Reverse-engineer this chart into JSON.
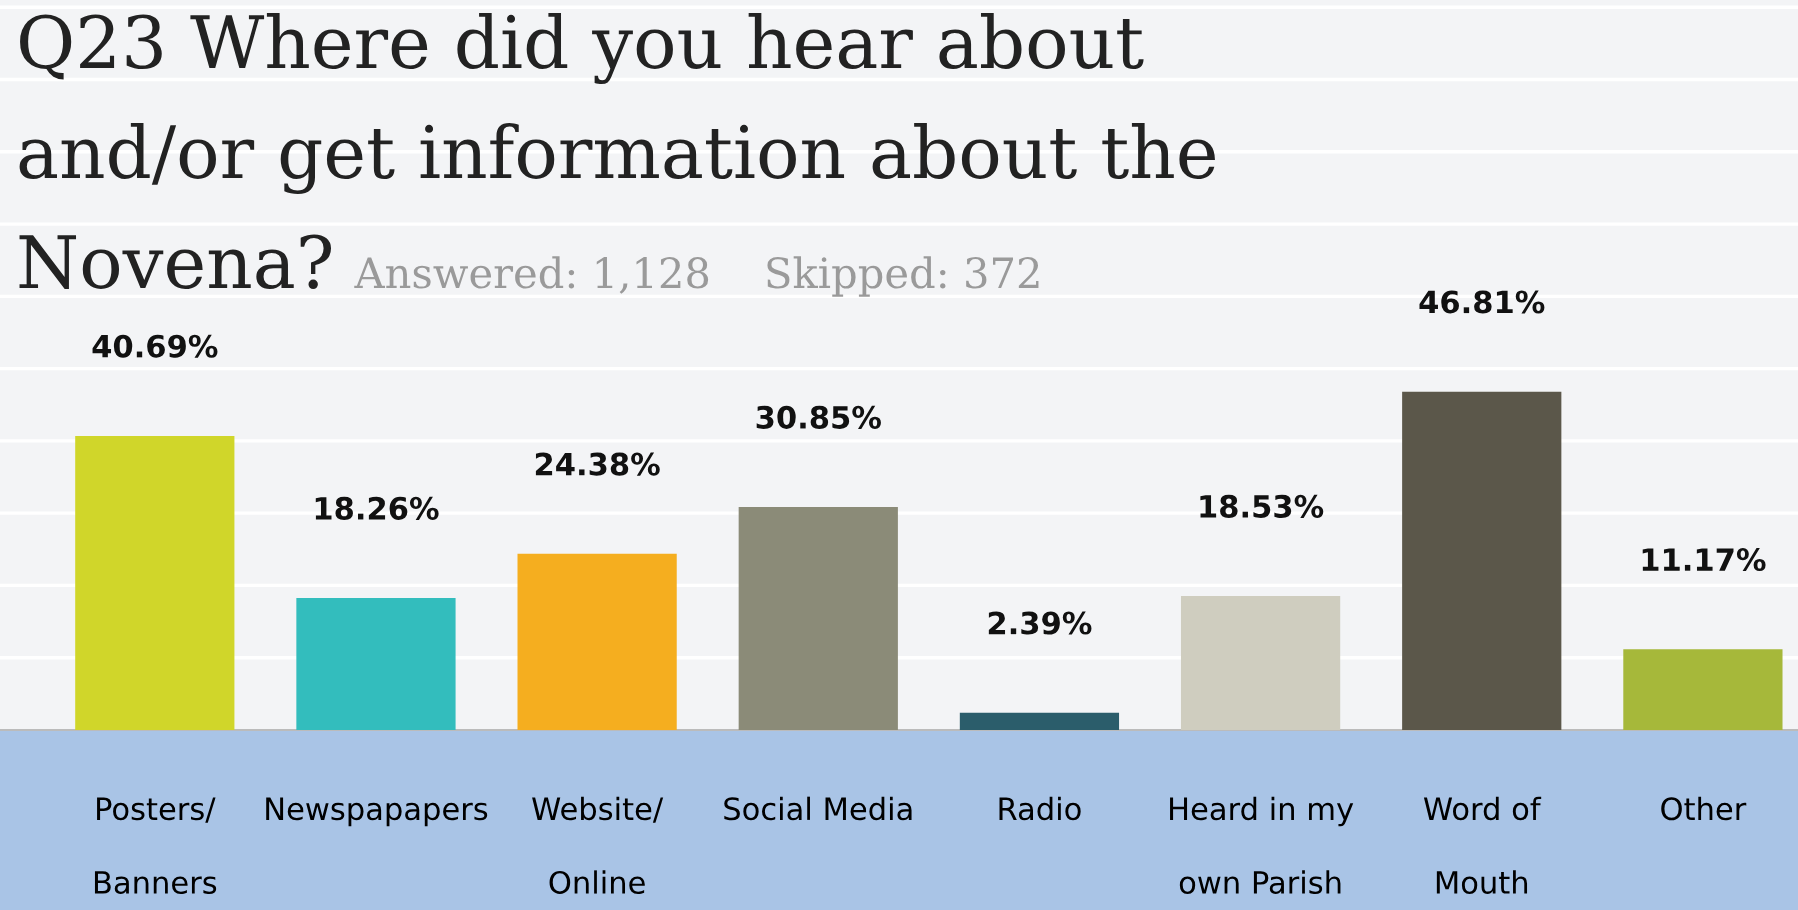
{
  "chart_data": {
    "type": "bar",
    "title": "Q23 Where did you hear about\nand/or get information about the\nNovena?",
    "subtitle": "Answered: 1,128    Skipped: 372",
    "categories": [
      "Posters/\nBanners",
      "Newspapapers",
      "Website/\nOnline",
      "Social Media",
      "Radio",
      "Heard in my\nown Parish",
      "Word of\nMouth",
      "Other"
    ],
    "values": [
      40.69,
      18.26,
      24.38,
      30.85,
      2.39,
      18.53,
      46.81,
      11.17
    ],
    "colors": [
      "#d0d62a",
      "#33bdbd",
      "#f5ae1f",
      "#8b8b78",
      "#2b5d6b",
      "#cfcdbf",
      "#5b574a",
      "#a6b83a"
    ],
    "value_labels": [
      "40.69%",
      "18.26%",
      "24.38%",
      "30.85%",
      "2.39%",
      "18.53%",
      "46.81%",
      "11.17%"
    ],
    "ylim": [
      0,
      101
    ],
    "yticks": [
      {
        "value": 10,
        "label": null
      },
      {
        "value": 20,
        "label": null
      },
      {
        "value": 30,
        "label": null
      },
      {
        "value": 40,
        "label": null
      },
      {
        "value": 50,
        "label": null
      },
      {
        "value": 60,
        "label": null
      },
      {
        "value": 70,
        "label": null
      },
      {
        "value": 80,
        "label": null
      },
      {
        "value": 90,
        "label": null
      },
      {
        "value": 100,
        "label": null
      }
    ],
    "grid": "y",
    "tick_labels": "x"
  }
}
